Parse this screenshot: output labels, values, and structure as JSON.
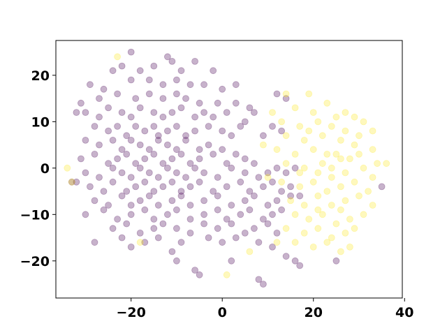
{
  "chart_data": {
    "type": "scatter",
    "title": "",
    "xlabel": "",
    "ylabel": "",
    "xlim": [
      -36.5,
      39.5
    ],
    "ylim": [
      -28,
      27.5
    ],
    "grid": false,
    "marker_opacity": 0.3,
    "x_ticks": [
      -20,
      0,
      20,
      40
    ],
    "y_ticks": [
      -20,
      -10,
      0,
      10,
      20
    ],
    "x_tick_labels": [
      "−20",
      "0",
      "20",
      "40"
    ],
    "y_tick_labels": [
      "−20",
      "−10",
      "0",
      "10",
      "20"
    ],
    "series": [
      {
        "color": "#440154",
        "points": [
          [
            -20,
            25
          ],
          [
            -12,
            24
          ],
          [
            -11,
            23
          ],
          [
            -6,
            23
          ],
          [
            -24,
            21
          ],
          [
            -22,
            22
          ],
          [
            -18,
            21
          ],
          [
            -15,
            22
          ],
          [
            -9,
            21
          ],
          [
            -2,
            21
          ],
          [
            -29,
            18
          ],
          [
            -26,
            17
          ],
          [
            -20,
            19
          ],
          [
            -16,
            19
          ],
          [
            -13,
            18
          ],
          [
            -10,
            19
          ],
          [
            -7,
            18
          ],
          [
            -4,
            18
          ],
          [
            0,
            17
          ],
          [
            3,
            18
          ],
          [
            -31,
            14
          ],
          [
            -27,
            15
          ],
          [
            -23,
            16
          ],
          [
            -19,
            15
          ],
          [
            -16,
            16
          ],
          [
            -13,
            15
          ],
          [
            -10,
            16
          ],
          [
            -8,
            15
          ],
          [
            -5,
            14
          ],
          [
            -1,
            14
          ],
          [
            3,
            14
          ],
          [
            6,
            13
          ],
          [
            12,
            16
          ],
          [
            14,
            15
          ],
          [
            -32,
            12
          ],
          [
            -30,
            12
          ],
          [
            -27,
            11
          ],
          [
            -25,
            13
          ],
          [
            -22,
            12
          ],
          [
            -20,
            11
          ],
          [
            -18,
            13
          ],
          [
            -15,
            12
          ],
          [
            -13,
            11
          ],
          [
            -11,
            12
          ],
          [
            -9,
            13
          ],
          [
            -6,
            11
          ],
          [
            -4,
            12
          ],
          [
            -2,
            11
          ],
          [
            1,
            12
          ],
          [
            5,
            10
          ],
          [
            7,
            12
          ],
          [
            -28,
            9
          ],
          [
            -25,
            8
          ],
          [
            -23,
            9
          ],
          [
            -21,
            7
          ],
          [
            -19,
            9
          ],
          [
            -17,
            8
          ],
          [
            -15,
            9
          ],
          [
            -14,
            7
          ],
          [
            -12,
            8
          ],
          [
            -10,
            9
          ],
          [
            -8,
            7
          ],
          [
            -6,
            8
          ],
          [
            -3,
            9
          ],
          [
            0,
            8
          ],
          [
            2,
            7
          ],
          [
            4,
            9
          ],
          [
            -30,
            6
          ],
          [
            -27,
            5
          ],
          [
            -24,
            6
          ],
          [
            -22,
            4
          ],
          [
            -20,
            6
          ],
          [
            -18,
            5
          ],
          [
            -16,
            4
          ],
          [
            -14,
            6
          ],
          [
            -12,
            5
          ],
          [
            -10,
            4
          ],
          [
            -8,
            6
          ],
          [
            -5,
            4
          ],
          [
            -3,
            5
          ],
          [
            0,
            4
          ],
          [
            9,
            7
          ],
          [
            11,
            9
          ],
          [
            13,
            8
          ],
          [
            -31,
            2
          ],
          [
            -28,
            3
          ],
          [
            -25,
            1
          ],
          [
            -23,
            2
          ],
          [
            -21,
            3
          ],
          [
            -19,
            1
          ],
          [
            -17,
            2
          ],
          [
            -15,
            3
          ],
          [
            -13,
            1
          ],
          [
            -11,
            2
          ],
          [
            -9,
            3
          ],
          [
            -7,
            1
          ],
          [
            -5,
            2
          ],
          [
            -2,
            3
          ],
          [
            1,
            1
          ],
          [
            3,
            3
          ],
          [
            5,
            2
          ],
          [
            7,
            1
          ],
          [
            -30,
            -1
          ],
          [
            -27,
            -2
          ],
          [
            -24,
            0
          ],
          [
            -22,
            -1
          ],
          [
            -20,
            -2
          ],
          [
            -18,
            0
          ],
          [
            -16,
            -1
          ],
          [
            -14,
            -2
          ],
          [
            -12,
            0
          ],
          [
            -10,
            -1
          ],
          [
            -8,
            -2
          ],
          [
            -6,
            0
          ],
          [
            -4,
            -1
          ],
          [
            -1,
            -2
          ],
          [
            2,
            0
          ],
          [
            5,
            -1
          ],
          [
            8,
            -2
          ],
          [
            10,
            -1
          ],
          [
            12,
            0
          ],
          [
            14,
            -1
          ],
          [
            16,
            0
          ],
          [
            -32,
            -3
          ],
          [
            -29,
            -4
          ],
          [
            -26,
            -5
          ],
          [
            -24,
            -3
          ],
          [
            -21,
            -5
          ],
          [
            -19,
            -4
          ],
          [
            -17,
            -3
          ],
          [
            -15,
            -5
          ],
          [
            -13,
            -4
          ],
          [
            -11,
            -3
          ],
          [
            -9,
            -5
          ],
          [
            -7,
            -4
          ],
          [
            -5,
            -3
          ],
          [
            -2,
            -5
          ],
          [
            1,
            -4
          ],
          [
            4,
            -3
          ],
          [
            6,
            -5
          ],
          [
            9,
            -4
          ],
          [
            11,
            -3
          ],
          [
            13,
            -5
          ],
          [
            15,
            -4
          ],
          [
            17,
            -6
          ],
          [
            -28,
            -7
          ],
          [
            -25,
            -8
          ],
          [
            -22,
            -6
          ],
          [
            -20,
            -8
          ],
          [
            -18,
            -7
          ],
          [
            -16,
            -6
          ],
          [
            -14,
            -8
          ],
          [
            -11,
            -7
          ],
          [
            -9,
            -6
          ],
          [
            -7,
            -8
          ],
          [
            -4,
            -7
          ],
          [
            -1,
            -6
          ],
          [
            2,
            -8
          ],
          [
            5,
            -7
          ],
          [
            7,
            -6
          ],
          [
            10,
            -8
          ],
          [
            12,
            -7
          ],
          [
            15,
            -6
          ],
          [
            -30,
            -10
          ],
          [
            -26,
            -9
          ],
          [
            -23,
            -11
          ],
          [
            -20,
            -10
          ],
          [
            -17,
            -9
          ],
          [
            -15,
            -11
          ],
          [
            -12,
            -10
          ],
          [
            -10,
            -9
          ],
          [
            -7,
            -11
          ],
          [
            -4,
            -10
          ],
          [
            -1,
            -9
          ],
          [
            1,
            -11
          ],
          [
            4,
            -10
          ],
          [
            6,
            -9
          ],
          [
            9,
            -11
          ],
          [
            11,
            -10
          ],
          [
            13,
            -9
          ],
          [
            -24,
            -13
          ],
          [
            -21,
            -12
          ],
          [
            -18,
            -14
          ],
          [
            -15,
            -13
          ],
          [
            -13,
            -12
          ],
          [
            -10,
            -13
          ],
          [
            -7,
            -14
          ],
          [
            -4,
            -12
          ],
          [
            -1,
            -13
          ],
          [
            2,
            -12
          ],
          [
            5,
            -14
          ],
          [
            7,
            -13
          ],
          [
            10,
            -12
          ],
          [
            12,
            -14
          ],
          [
            -22,
            -15
          ],
          [
            -17,
            -16
          ],
          [
            -14,
            -15
          ],
          [
            -9,
            -16
          ],
          [
            -3,
            -15
          ],
          [
            0,
            -16
          ],
          [
            3,
            -15
          ],
          [
            8,
            -16
          ],
          [
            11,
            -17
          ],
          [
            -28,
            -16
          ],
          [
            -20,
            -17
          ],
          [
            -11,
            -18
          ],
          [
            -10,
            -20
          ],
          [
            -6,
            -22
          ],
          [
            -5,
            -23
          ],
          [
            2,
            -20
          ],
          [
            8,
            -24
          ],
          [
            9,
            -25
          ],
          [
            14,
            -19
          ],
          [
            17,
            -21
          ],
          [
            16,
            -20
          ],
          [
            25,
            -20
          ],
          [
            35,
            -4
          ],
          [
            -33,
            -3
          ]
        ]
      },
      {
        "color": "#fde725",
        "points": [
          [
            -23,
            24
          ],
          [
            -34,
            0
          ],
          [
            -33,
            -3
          ],
          [
            -18,
            -16
          ],
          [
            1,
            -23
          ],
          [
            14,
            16
          ],
          [
            19,
            16
          ],
          [
            23,
            14
          ],
          [
            27,
            12
          ],
          [
            29,
            11
          ],
          [
            11,
            12
          ],
          [
            16,
            13
          ],
          [
            20,
            12
          ],
          [
            25,
            11
          ],
          [
            31,
            10
          ],
          [
            33,
            8
          ],
          [
            13,
            10
          ],
          [
            17,
            9
          ],
          [
            21,
            10
          ],
          [
            24,
            9
          ],
          [
            27,
            8
          ],
          [
            30,
            7
          ],
          [
            14,
            7
          ],
          [
            18,
            6
          ],
          [
            22,
            7
          ],
          [
            26,
            6
          ],
          [
            29,
            5
          ],
          [
            33,
            4
          ],
          [
            12,
            4
          ],
          [
            16,
            3
          ],
          [
            20,
            4
          ],
          [
            23,
            3
          ],
          [
            26,
            2
          ],
          [
            30,
            3
          ],
          [
            34,
            1
          ],
          [
            36,
            1
          ],
          [
            14,
            1
          ],
          [
            18,
            0
          ],
          [
            21,
            -1
          ],
          [
            24,
            0
          ],
          [
            27,
            -1
          ],
          [
            31,
            0
          ],
          [
            33,
            -2
          ],
          [
            13,
            -3
          ],
          [
            17,
            -4
          ],
          [
            20,
            -3
          ],
          [
            23,
            -5
          ],
          [
            26,
            -4
          ],
          [
            29,
            -3
          ],
          [
            32,
            -5
          ],
          [
            15,
            -7
          ],
          [
            18,
            -8
          ],
          [
            21,
            -6
          ],
          [
            24,
            -8
          ],
          [
            27,
            -7
          ],
          [
            30,
            -6
          ],
          [
            33,
            -8
          ],
          [
            16,
            -10
          ],
          [
            19,
            -11
          ],
          [
            22,
            -10
          ],
          [
            25,
            -12
          ],
          [
            28,
            -11
          ],
          [
            31,
            -10
          ],
          [
            14,
            -13
          ],
          [
            18,
            -14
          ],
          [
            21,
            -13
          ],
          [
            24,
            -15
          ],
          [
            27,
            -14
          ],
          [
            29,
            -13
          ],
          [
            16,
            -16
          ],
          [
            20,
            -17
          ],
          [
            23,
            -16
          ],
          [
            26,
            -18
          ],
          [
            28,
            -17
          ],
          [
            12,
            -16
          ],
          [
            6,
            -18
          ],
          [
            9,
            5
          ],
          [
            10,
            -2
          ],
          [
            22,
            1
          ],
          [
            25,
            3
          ],
          [
            19,
            8
          ],
          [
            28,
            2
          ],
          [
            24,
            -2
          ],
          [
            21,
            -9
          ],
          [
            26,
            -9
          ],
          [
            17,
            -1
          ]
        ]
      }
    ]
  }
}
